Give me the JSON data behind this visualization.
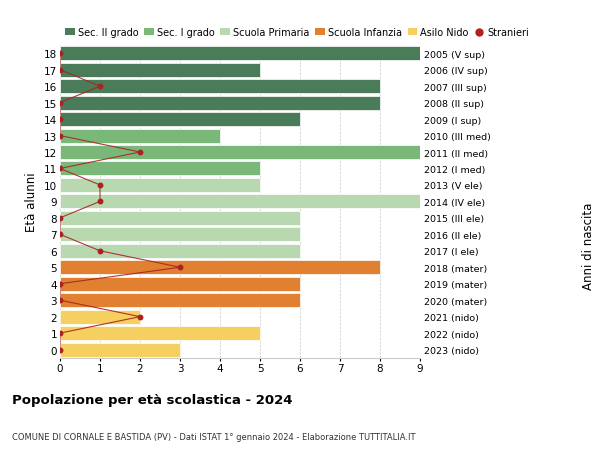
{
  "ages": [
    18,
    17,
    16,
    15,
    14,
    13,
    12,
    11,
    10,
    9,
    8,
    7,
    6,
    5,
    4,
    3,
    2,
    1,
    0
  ],
  "years": [
    "2005 (V sup)",
    "2006 (IV sup)",
    "2007 (III sup)",
    "2008 (II sup)",
    "2009 (I sup)",
    "2010 (III med)",
    "2011 (II med)",
    "2012 (I med)",
    "2013 (V ele)",
    "2014 (IV ele)",
    "2015 (III ele)",
    "2016 (II ele)",
    "2017 (I ele)",
    "2018 (mater)",
    "2019 (mater)",
    "2020 (mater)",
    "2021 (nido)",
    "2022 (nido)",
    "2023 (nido)"
  ],
  "bar_values": [
    9,
    5,
    8,
    8,
    6,
    4,
    9,
    5,
    5,
    9,
    6,
    6,
    6,
    8,
    6,
    6,
    2,
    5,
    3
  ],
  "bar_colors": [
    "#4a7c59",
    "#4a7c59",
    "#4a7c59",
    "#4a7c59",
    "#4a7c59",
    "#7ab87a",
    "#7ab87a",
    "#7ab87a",
    "#b8d9b0",
    "#b8d9b0",
    "#b8d9b0",
    "#b8d9b0",
    "#b8d9b0",
    "#e08030",
    "#e08030",
    "#e08030",
    "#f5d060",
    "#f5d060",
    "#f5d060"
  ],
  "stranieri_x": [
    0,
    0,
    1,
    0,
    0,
    0,
    2,
    0,
    1,
    1,
    0,
    0,
    1,
    3,
    0,
    0,
    2,
    0,
    0
  ],
  "legend_labels": [
    "Sec. II grado",
    "Sec. I grado",
    "Scuola Primaria",
    "Scuola Infanzia",
    "Asilo Nido",
    "Stranieri"
  ],
  "legend_colors": [
    "#4a7c59",
    "#7ab87a",
    "#b8d9b0",
    "#e08030",
    "#f5d060",
    "#aa2222"
  ],
  "ylabel_left": "Età alunni",
  "ylabel_right": "Anni di nascita",
  "xlim": [
    0,
    9
  ],
  "title": "Popolazione per età scolastica - 2024",
  "subtitle": "COMUNE DI CORNALE E BASTIDA (PV) - Dati ISTAT 1° gennaio 2024 - Elaborazione TUTTITALIA.IT",
  "background_color": "#ffffff",
  "bar_height": 0.85,
  "stranieri_color": "#aa2222",
  "stranieri_line_color": "#aa2222",
  "grid_color": "#cccccc"
}
